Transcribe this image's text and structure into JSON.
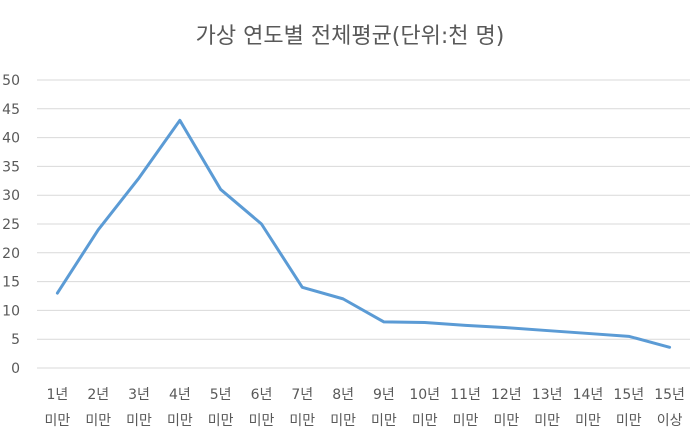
{
  "chart_data": {
    "type": "line",
    "title": "가상 연도별 전체평균(단위:천 명)",
    "categories": [
      [
        "1년",
        "미만"
      ],
      [
        "2년",
        "미만"
      ],
      [
        "3년",
        "미만"
      ],
      [
        "4년",
        "미만"
      ],
      [
        "5년",
        "미만"
      ],
      [
        "6년",
        "미만"
      ],
      [
        "7년",
        "미만"
      ],
      [
        "8년",
        "미만"
      ],
      [
        "9년",
        "미만"
      ],
      [
        "10년",
        "미만"
      ],
      [
        "11년",
        "미만"
      ],
      [
        "12년",
        "미만"
      ],
      [
        "13년",
        "미만"
      ],
      [
        "14년",
        "미만"
      ],
      [
        "15년",
        "미만"
      ],
      [
        "15년",
        "이상"
      ]
    ],
    "series": [
      {
        "values": [
          13,
          24,
          33,
          43,
          31,
          25,
          14,
          12,
          8,
          7.9,
          7.4,
          7.0,
          6.5,
          6.0,
          5.5,
          3.6
        ]
      }
    ],
    "ylim": [
      0,
      50
    ],
    "yticks": [
      0,
      5,
      10,
      15,
      20,
      25,
      30,
      35,
      40,
      45,
      50
    ],
    "grid": true,
    "legend": "none",
    "line_color": "#5b9bd5",
    "grid_color": "#d9d9d9",
    "text_color": "#595959"
  }
}
